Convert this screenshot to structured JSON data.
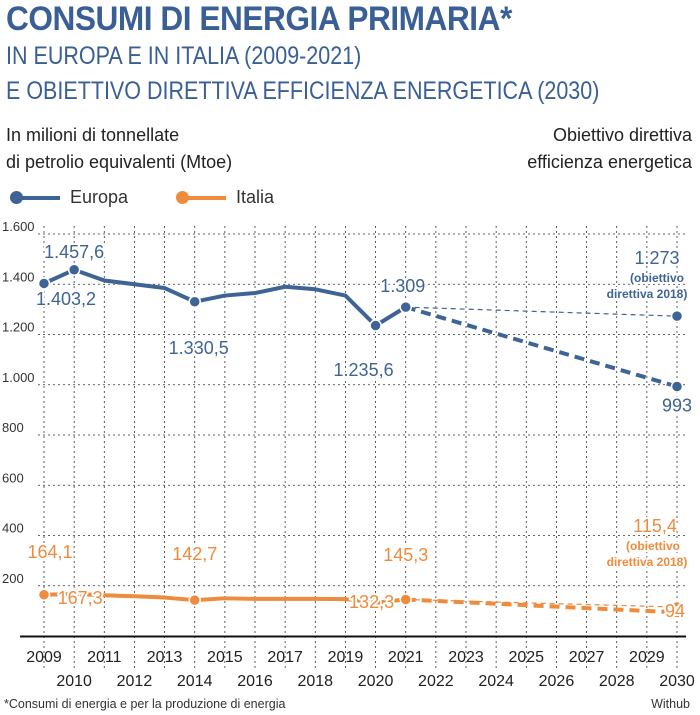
{
  "header": {
    "title": "CONSUMI DI ENERGIA PRIMARIA*",
    "subtitle_line1": "IN EUROPA E IN ITALIA (2009-2021)",
    "subtitle_line2": "E OBIETTIVO DIRETTIVA EFFICIENZA ENERGETICA (2030)"
  },
  "unit_label": {
    "line1": "In milioni di tonnellate",
    "line2": "di petrolio equivalenti (Mtoe)"
  },
  "target_label": {
    "line1": "Obiettivo direttiva",
    "line2": "efficienza energetica"
  },
  "legend": {
    "europe": "Europa",
    "italy": "Italia"
  },
  "footnote": "*Consumi di energia e per la produzione di energia",
  "credit": "Withub",
  "colors": {
    "europe": "#3e6496",
    "italy": "#ef8b3c",
    "title": "#3a5f94"
  },
  "chart_data": {
    "type": "line",
    "title": "CONSUMI DI ENERGIA PRIMARIA*",
    "ylabel": "In milioni di tonnellate di petrolio equivalenti (Mtoe)",
    "ylim": [
      0,
      1600
    ],
    "yticks": [
      200,
      400,
      600,
      800,
      "1.000",
      "1.200",
      "1.400",
      "1.600"
    ],
    "ytick_values": [
      200,
      400,
      600,
      800,
      1000,
      1200,
      1400,
      1600
    ],
    "xlim": [
      2009,
      2030
    ],
    "xticks_upper": [
      "2009",
      "2011",
      "2013",
      "2015",
      "2017",
      "2019",
      "2021",
      "2023",
      "2025",
      "2027",
      "2029"
    ],
    "xticks_lower": [
      "2010",
      "2012",
      "2014",
      "2016",
      "2018",
      "2020",
      "2022",
      "2024",
      "2026",
      "2028",
      "2030"
    ],
    "series": [
      {
        "name": "Europa",
        "x": [
          2009,
          2010,
          2011,
          2012,
          2013,
          2014,
          2015,
          2016,
          2017,
          2018,
          2019,
          2020,
          2021
        ],
        "values": [
          1403.2,
          1457.6,
          1415,
          1400,
          1385,
          1330.5,
          1355,
          1365,
          1390,
          1380,
          1355,
          1235.6,
          1309
        ],
        "markers": [
          2009,
          2010,
          2014,
          2020,
          2021
        ],
        "projection": {
          "x": [
            2021,
            2030
          ],
          "values": [
            1309,
            993
          ]
        },
        "target": {
          "x": [
            2021,
            2030
          ],
          "values": [
            1309,
            1273
          ]
        }
      },
      {
        "name": "Italia",
        "x": [
          2009,
          2010,
          2011,
          2012,
          2013,
          2014,
          2015,
          2016,
          2017,
          2018,
          2019,
          2020,
          2021
        ],
        "values": [
          164.1,
          167.3,
          162,
          158,
          153,
          142.7,
          150,
          148,
          148,
          148,
          147,
          132.3,
          145.3
        ],
        "markers": [
          2009,
          2010,
          2014,
          2020,
          2021
        ],
        "projection": {
          "x": [
            2021,
            2030
          ],
          "values": [
            145.3,
            94
          ]
        },
        "target": {
          "x": [
            2021,
            2030
          ],
          "values": [
            145.3,
            115.4
          ]
        }
      }
    ],
    "labels": {
      "eu_2009": "1.403,2",
      "eu_2010": "1.457,6",
      "eu_2014": "1.330,5",
      "eu_2020": "1.235,6",
      "eu_2021": "1.309",
      "eu_target": "1.273",
      "eu_target_note1": "(obiettivo",
      "eu_target_note2": "direttiva 2018)",
      "eu_proj": "993",
      "it_2009": "164,1",
      "it_2010": "167,3",
      "it_2014": "142,7",
      "it_2020": "132,3",
      "it_2021": "145,3",
      "it_target": "115,4",
      "it_target_note1": "(obiettivo",
      "it_target_note2": "direttiva 2018)",
      "it_proj": "94"
    }
  }
}
